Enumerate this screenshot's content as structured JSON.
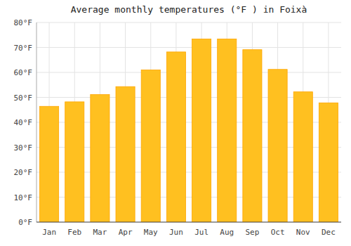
{
  "chart_data": {
    "type": "bar",
    "title": "Average monthly temperatures (°F ) in Foixà",
    "categories": [
      "Jan",
      "Feb",
      "Mar",
      "Apr",
      "May",
      "Jun",
      "Jul",
      "Aug",
      "Sep",
      "Oct",
      "Nov",
      "Dec"
    ],
    "values": [
      46.4,
      48.2,
      51.1,
      54.3,
      61.0,
      68.2,
      73.4,
      73.4,
      69.1,
      61.2,
      52.2,
      47.8
    ],
    "color": "#FFC020",
    "ylim": [
      0,
      80
    ],
    "yticks": [
      {
        "value": 0,
        "label": "0°F"
      },
      {
        "value": 10,
        "label": "10°F"
      },
      {
        "value": 20,
        "label": "20°F"
      },
      {
        "value": 30,
        "label": "30°F"
      },
      {
        "value": 40,
        "label": "40°F"
      },
      {
        "value": 50,
        "label": "50°F"
      },
      {
        "value": 60,
        "label": "60°F"
      },
      {
        "value": 70,
        "label": "70°F"
      },
      {
        "value": 80,
        "label": "80°F"
      }
    ],
    "grid": true
  }
}
